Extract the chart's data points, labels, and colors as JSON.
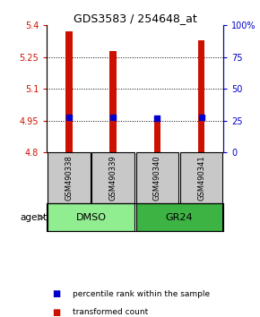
{
  "title": "GDS3583 / 254648_at",
  "samples": [
    "GSM490338",
    "GSM490339",
    "GSM490340",
    "GSM490341"
  ],
  "bar_values": [
    5.37,
    5.28,
    4.968,
    5.33
  ],
  "bar_bottom": 4.8,
  "percentile_values": [
    4.968,
    4.968,
    4.962,
    4.968
  ],
  "ylim": [
    4.8,
    5.4
  ],
  "yticks_left": [
    4.8,
    4.95,
    5.1,
    5.25,
    5.4
  ],
  "yticks_right": [
    0,
    25,
    50,
    75,
    100
  ],
  "yticks_right_labels": [
    "0",
    "25",
    "50",
    "75",
    "100%"
  ],
  "ylim_right": [
    0,
    100
  ],
  "groups": [
    {
      "label": "DMSO",
      "samples": [
        0,
        1
      ],
      "color": "#90EE90"
    },
    {
      "label": "GR24",
      "samples": [
        2,
        3
      ],
      "color": "#3CB343"
    }
  ],
  "bar_color": "#CC1100",
  "percentile_color": "#0000CC",
  "bar_width": 0.15,
  "legend_items": [
    {
      "label": "transformed count",
      "color": "#CC1100"
    },
    {
      "label": "percentile rank within the sample",
      "color": "#0000CC"
    }
  ],
  "agent_label": "agent",
  "left_axis_color": "#CC1100",
  "right_axis_color": "#0000CC",
  "sample_box_color": "#C8C8C8",
  "title_fontsize": 9,
  "tick_fontsize": 7,
  "legend_fontsize": 6.5
}
